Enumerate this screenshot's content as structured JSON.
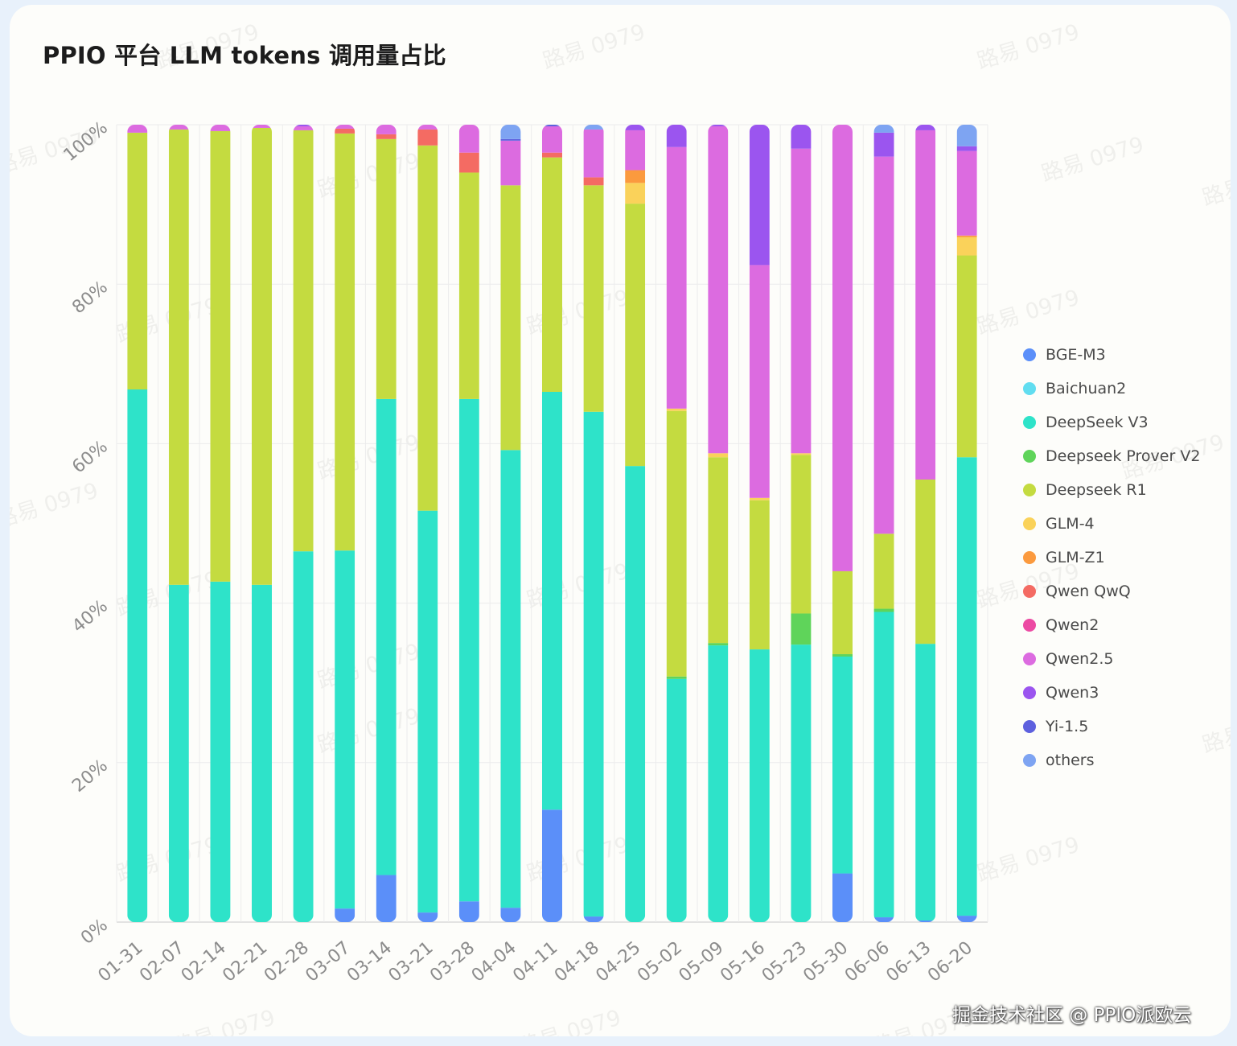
{
  "title": "PPIO 平台 LLM tokens 调用量占比",
  "credit": "掘金技术社区 @ PPIO派欧云",
  "watermark": "路易 0979",
  "chart_data": {
    "type": "bar",
    "stacked": true,
    "percent": true,
    "title": "PPIO 平台 LLM tokens 调用量占比",
    "xlabel": "",
    "ylabel": "",
    "ylim": [
      0,
      100
    ],
    "yticks": [
      0,
      20,
      40,
      60,
      80,
      100
    ],
    "ytick_labels": [
      "0%",
      "20%",
      "40%",
      "60%",
      "80%",
      "100%"
    ],
    "grid": true,
    "legend_position": "right",
    "categories": [
      "01-31",
      "02-07",
      "02-14",
      "02-21",
      "02-28",
      "03-07",
      "03-14",
      "03-21",
      "03-28",
      "04-04",
      "04-11",
      "04-18",
      "04-25",
      "05-02",
      "05-09",
      "05-16",
      "05-23",
      "05-30",
      "06-06",
      "06-13",
      "06-20"
    ],
    "series": [
      {
        "name": "BGE-M3",
        "color": "#5b8ff9",
        "values": [
          0,
          0,
          0,
          0,
          0,
          1.7,
          5.9,
          1.2,
          2.6,
          1.8,
          14.1,
          0.7,
          0,
          0,
          0,
          0,
          0,
          6.1,
          0.6,
          0.2,
          0.8
        ]
      },
      {
        "name": "Baichuan2",
        "color": "#61ddf0",
        "values": [
          0,
          0,
          0,
          0,
          0,
          0,
          0,
          0,
          0,
          0,
          0,
          0,
          0,
          0,
          0,
          0,
          0,
          0,
          0,
          0,
          0
        ]
      },
      {
        "name": "DeepSeek V3",
        "color": "#2ee3c9",
        "values": [
          66.8,
          42.3,
          42.7,
          42.3,
          46.5,
          44.9,
          59.7,
          50.4,
          63.0,
          57.4,
          52.4,
          63.3,
          57.2,
          30.5,
          34.7,
          34.2,
          34.8,
          27.2,
          38.3,
          34.7,
          57.5
        ]
      },
      {
        "name": "Deepseek Prover V2",
        "color": "#5fd45a",
        "values": [
          0,
          0,
          0,
          0,
          0,
          0,
          0,
          0,
          0,
          0,
          0,
          0,
          0,
          0.3,
          0.3,
          0,
          3.9,
          0.3,
          0.4,
          0,
          0
        ]
      },
      {
        "name": "Deepseek R1",
        "color": "#c4db40",
        "values": [
          32.2,
          57.1,
          56.5,
          57.3,
          52.8,
          52.3,
          32.6,
          45.8,
          28.4,
          33.2,
          29.4,
          28.4,
          32.9,
          33.3,
          23.3,
          18.7,
          19.9,
          10.4,
          9.4,
          20.6,
          25.3
        ]
      },
      {
        "name": "GLM-4",
        "color": "#fad25a",
        "values": [
          0,
          0,
          0,
          0,
          0,
          0,
          0,
          0,
          0,
          0,
          0,
          0,
          2.6,
          0.3,
          0.5,
          0.3,
          0.2,
          0,
          0,
          0,
          2.3
        ]
      },
      {
        "name": "GLM-Z1",
        "color": "#fb9a3e",
        "values": [
          0,
          0,
          0,
          0,
          0,
          0,
          0,
          0,
          0,
          0,
          0,
          0,
          1.6,
          0,
          0,
          0,
          0,
          0,
          0,
          0,
          0.2
        ]
      },
      {
        "name": "Qwen QwQ",
        "color": "#f46b63",
        "values": [
          0,
          0,
          0,
          0,
          0,
          0.6,
          0.6,
          2.0,
          2.5,
          0,
          0.6,
          1.0,
          0,
          0,
          0,
          0,
          0,
          0,
          0,
          0,
          0
        ]
      },
      {
        "name": "Qwen2",
        "color": "#ec4aa3",
        "values": [
          0,
          0,
          0,
          0,
          0,
          0,
          0,
          0,
          0,
          0,
          0,
          0,
          0,
          0,
          0,
          0,
          0,
          0,
          0,
          0,
          0
        ]
      },
      {
        "name": "Qwen2.5",
        "color": "#dc6be0",
        "values": [
          1.0,
          0.6,
          0.8,
          0.4,
          0.5,
          0.5,
          1.2,
          0.6,
          3.5,
          5.6,
          3.3,
          6.0,
          5.0,
          32.8,
          41.0,
          29.2,
          38.2,
          56.0,
          47.3,
          43.8,
          10.6
        ]
      },
      {
        "name": "Qwen3",
        "color": "#9b55ef",
        "values": [
          0,
          0,
          0,
          0,
          0.2,
          0,
          0,
          0,
          0,
          0,
          0,
          0,
          0.7,
          2.8,
          0.7,
          17.6,
          3.0,
          0,
          3.0,
          0.7,
          0.6
        ]
      },
      {
        "name": "Yi-1.5",
        "color": "#5d60de",
        "values": [
          0,
          0,
          0,
          0,
          0,
          0,
          0,
          0,
          0,
          0.2,
          0.2,
          0,
          0,
          0,
          0,
          0,
          0,
          0,
          0,
          0,
          0
        ]
      },
      {
        "name": "others",
        "color": "#7ea4f2",
        "values": [
          0,
          0,
          0,
          0,
          0,
          0,
          0,
          0,
          0.3,
          1.8,
          1.5,
          0.6,
          0,
          0,
          0,
          0,
          0,
          0,
          1.0,
          0,
          2.7
        ]
      }
    ]
  }
}
